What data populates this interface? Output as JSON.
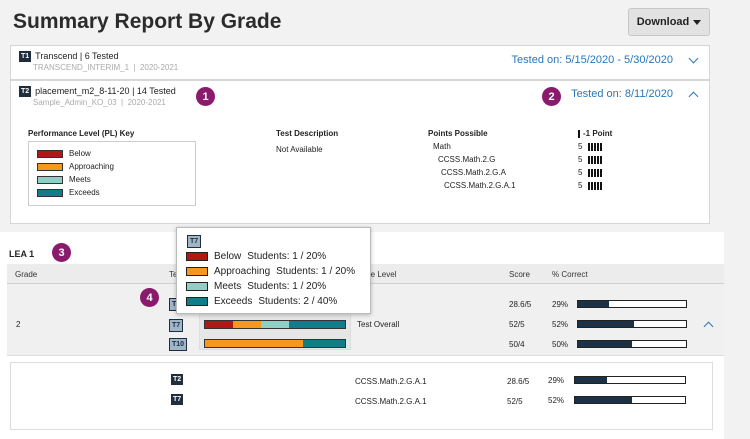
{
  "page": {
    "title": "Summary Report By Grade",
    "download_label": "Download"
  },
  "tests": [
    {
      "badge": "T1",
      "name": "Transcend | 6 Tested",
      "code": "TRANSCEND_INTERIM_1",
      "year": "2020-2021",
      "tested_on": "Tested on: 5/15/2020 - 5/30/2020",
      "expanded": false
    },
    {
      "badge": "T2",
      "name": "placement_m2_8-11-20 | 14 Tested",
      "code": "Sample_Admin_KO_03",
      "year": "2020-2021",
      "tested_on": "Tested on: 8/11/2020",
      "expanded": true
    }
  ],
  "callouts": [
    "1",
    "2",
    "3",
    "4"
  ],
  "details": {
    "pl_key_title": "Performance Level (PL) Key",
    "pl_levels": [
      {
        "label": "Below",
        "color": "#b01717"
      },
      {
        "label": "Approaching",
        "color": "#f39a1d"
      },
      {
        "label": "Meets",
        "color": "#8fd0c6"
      },
      {
        "label": "Exceeds",
        "color": "#127c8a"
      }
    ],
    "test_description_title": "Test Description",
    "test_description_value": "Not Available",
    "points_possible_title": "Points Possible",
    "points_items": [
      {
        "label": "Math",
        "points": "5"
      },
      {
        "label": "CCSS.Math.2.G",
        "points": "5"
      },
      {
        "label": "CCSS.Math.2.G.A",
        "points": "5"
      },
      {
        "label": "CCSS.Math.2.G.A.1",
        "points": "5"
      }
    ],
    "point_key_label": "-1 Point"
  },
  "lea": {
    "title": "LEA 1",
    "headers": {
      "grade": "Grade",
      "test": "Te",
      "level": "re Level",
      "score": "Score",
      "pct": "% Correct"
    },
    "grade_value": "2",
    "test_overall_label": "Test Overall",
    "rows": [
      {
        "badge": "T2",
        "score": "28.6/5",
        "pct": "29%",
        "pct_value": 29
      },
      {
        "badge": "T7",
        "score": "52/5",
        "pct": "52%",
        "pct_value": 52
      },
      {
        "badge": "T10",
        "score": "50/4",
        "pct": "50%",
        "pct_value": 50
      }
    ],
    "sub_rows": [
      {
        "badge": "T2",
        "standard": "CCSS.Math.2.G.A.1",
        "score": "28.6/5",
        "pct": "29%",
        "pct_value": 29
      },
      {
        "badge": "T7",
        "standard": "CCSS.Math.2.G.A.1",
        "score": "52/5",
        "pct": "52%",
        "pct_value": 52
      }
    ]
  },
  "tooltip": {
    "badge": "T7",
    "rows": [
      {
        "level": "Below",
        "students": "Students: 1 / 20%",
        "color": "#b01717"
      },
      {
        "level": "Approaching",
        "students": "Students: 1 / 20%",
        "color": "#f39a1d"
      },
      {
        "level": "Meets",
        "students": "Students: 1 / 20%",
        "color": "#8fd0c6"
      },
      {
        "level": "Exceeds",
        "students": "Students: 2 / 40%",
        "color": "#127c8a"
      }
    ]
  }
}
